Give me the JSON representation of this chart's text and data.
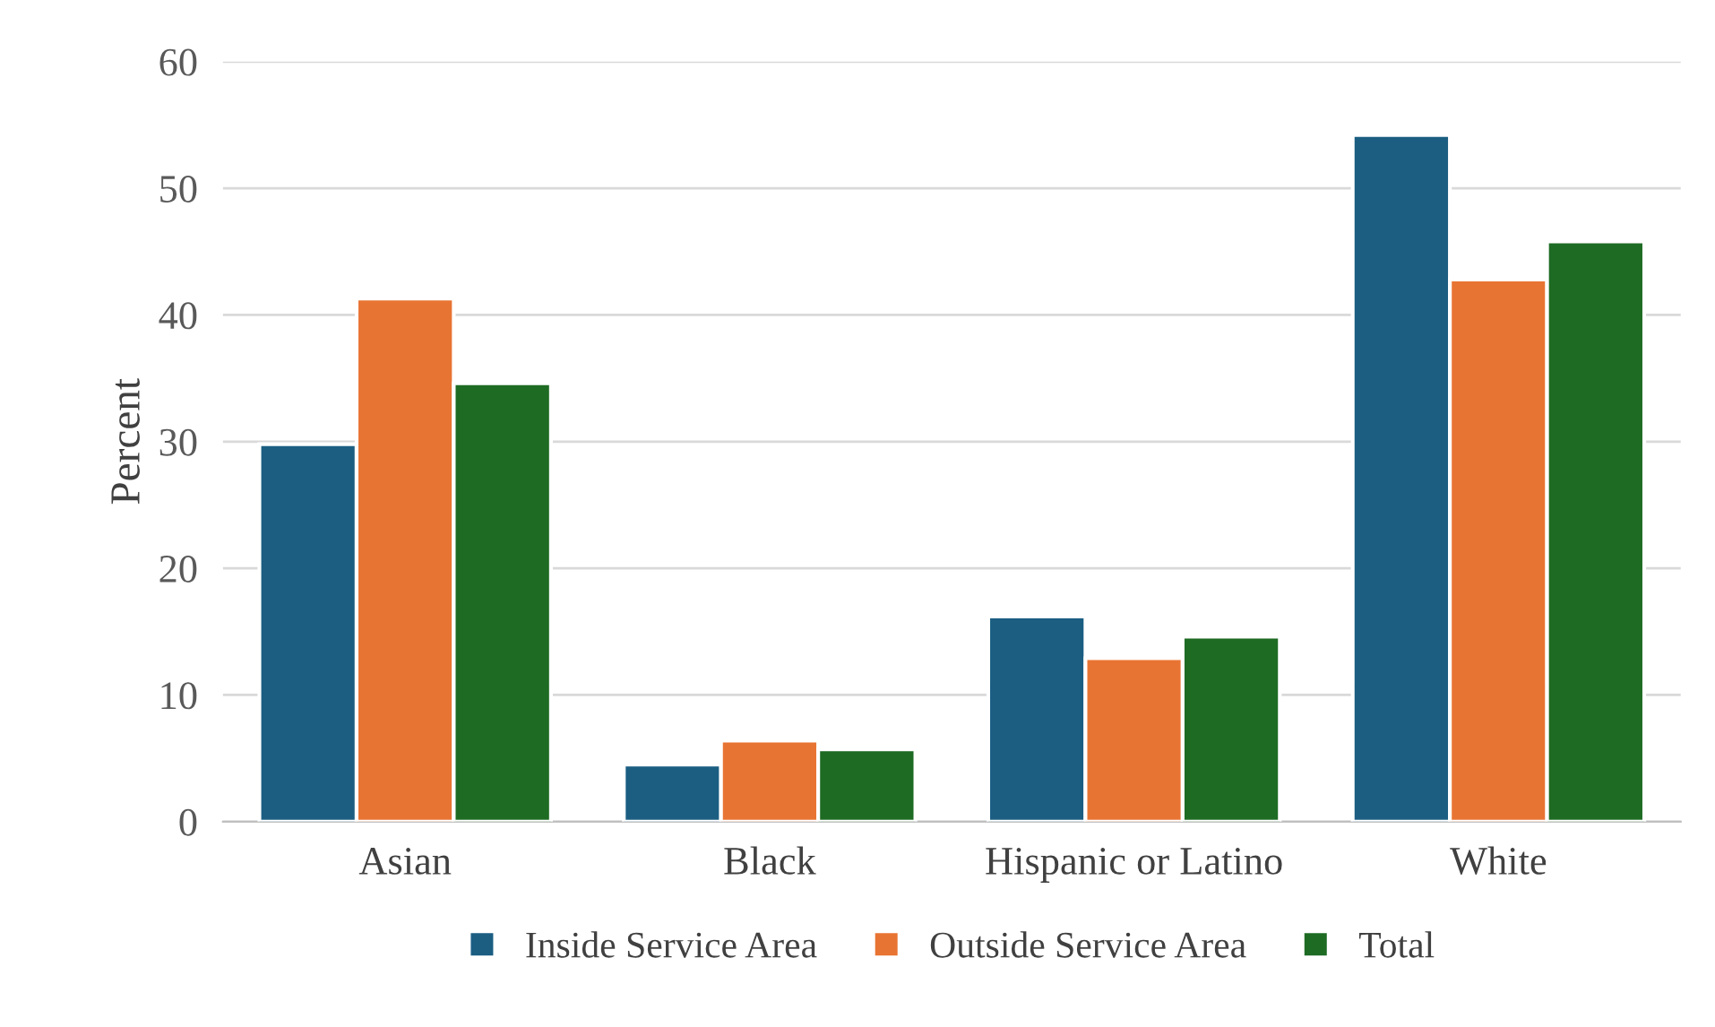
{
  "chart_data": {
    "type": "bar",
    "ylabel": "Percent",
    "categories": [
      "Asian",
      "Black",
      "Hispanic or Latino",
      "White"
    ],
    "series": [
      {
        "name": "Inside Service Area",
        "color": "#1b5e82",
        "values": [
          29.8,
          4.5,
          16.2,
          54.2
        ]
      },
      {
        "name": "Outside Service Area",
        "color": "#e87433",
        "values": [
          41.3,
          6.4,
          12.9,
          42.8
        ]
      },
      {
        "name": "Total",
        "color": "#1e6b24",
        "values": [
          34.6,
          5.7,
          14.6,
          45.8
        ]
      }
    ],
    "ylim": [
      0,
      60
    ],
    "yticks": [
      0,
      10,
      20,
      30,
      40,
      50,
      60
    ],
    "grid": "y",
    "legend": "bottom"
  }
}
